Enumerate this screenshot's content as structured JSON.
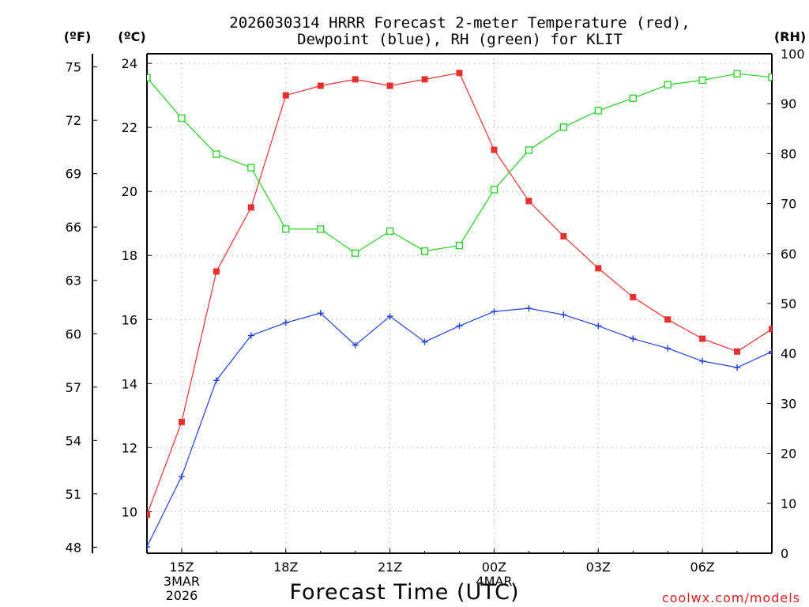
{
  "chart_data": {
    "type": "line",
    "title": [
      "2026030314 HRRR Forecast 2-meter Temperature (red),",
      "Dewpoint (blue), RH (green) for KLIT"
    ],
    "xlabel": "Forecast Time (UTC)",
    "unit_labels": {
      "fahrenheit": "(ºF)",
      "celsius": "(ºC)",
      "rh": "(RH)"
    },
    "x_hours": [
      14,
      15,
      16,
      17,
      18,
      19,
      20,
      21,
      22,
      23,
      24,
      25,
      26,
      27,
      28,
      29,
      30,
      31,
      32
    ],
    "xlim": [
      14,
      32
    ],
    "x_ticks": [
      {
        "hour": 15,
        "lines": [
          "15Z",
          "3MAR",
          "2026"
        ]
      },
      {
        "hour": 18,
        "lines": [
          "18Z"
        ]
      },
      {
        "hour": 21,
        "lines": [
          "21Z"
        ]
      },
      {
        "hour": 24,
        "lines": [
          "00Z",
          "4MAR"
        ]
      },
      {
        "hour": 27,
        "lines": [
          "03Z"
        ]
      },
      {
        "hour": 30,
        "lines": [
          "06Z"
        ]
      }
    ],
    "y_celsius": {
      "range": [
        8.7,
        24.3
      ],
      "ticks": [
        10,
        12,
        14,
        16,
        18,
        20,
        22,
        24
      ]
    },
    "y_fahrenheit": {
      "ticks": [
        48,
        51,
        54,
        57,
        60,
        63,
        66,
        69,
        72,
        75
      ]
    },
    "y_rh": {
      "range": [
        0,
        100
      ],
      "ticks": [
        0,
        10,
        20,
        30,
        40,
        50,
        60,
        70,
        80,
        90,
        100
      ]
    },
    "series": [
      {
        "name": "Temperature",
        "unit": "C",
        "color": "#e83030",
        "marker": "filled-square",
        "values": [
          9.9,
          12.8,
          17.5,
          19.5,
          23.0,
          23.3,
          23.5,
          23.3,
          23.5,
          23.7,
          21.3,
          19.7,
          18.6,
          17.6,
          16.7,
          16.0,
          15.4,
          15.0,
          15.7
        ]
      },
      {
        "name": "Dewpoint",
        "unit": "C",
        "color": "#2040e0",
        "marker": "plus",
        "values": [
          8.9,
          11.1,
          14.1,
          15.5,
          15.9,
          16.2,
          15.2,
          16.1,
          15.3,
          15.8,
          16.25,
          16.35,
          16.15,
          15.8,
          15.4,
          15.1,
          14.7,
          14.5,
          15.0
        ]
      },
      {
        "name": "RH",
        "unit": "%",
        "color": "#20d020",
        "marker": "open-square",
        "values": [
          95.2,
          87.1,
          79.9,
          77.2,
          64.9,
          64.9,
          60.1,
          64.5,
          60.5,
          61.6,
          72.8,
          80.7,
          85.3,
          88.6,
          91.1,
          93.8,
          94.7,
          96.0,
          95.3
        ]
      }
    ]
  },
  "footer": {
    "credit": "coolwx.com/models"
  }
}
